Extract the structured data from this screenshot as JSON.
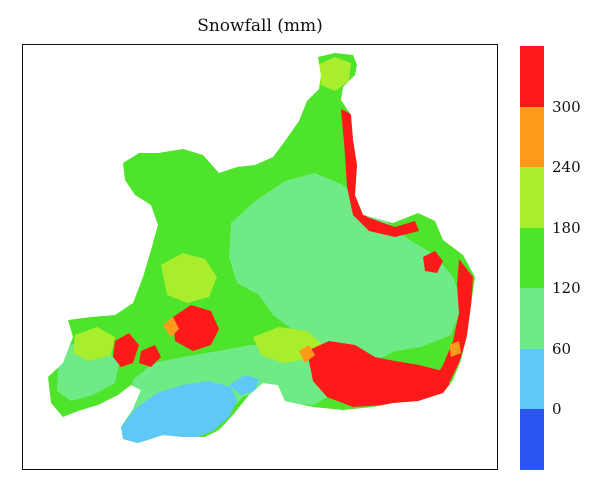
{
  "title": "Snowfall (mm)",
  "colorbar": {
    "segments_top_to_bottom": [
      {
        "color": "#ff1a1a",
        "range": "> 300"
      },
      {
        "color": "#ff9a1a",
        "range": "240–300"
      },
      {
        "color": "#a8ee2c",
        "range": "180–240"
      },
      {
        "color": "#4ee42c",
        "range": "120–180"
      },
      {
        "color": "#6eeb86",
        "range": "60–120"
      },
      {
        "color": "#5ec8f6",
        "range": "0–60"
      },
      {
        "color": "#2a55f0",
        "range": "< 0"
      }
    ],
    "tick_labels_top_to_bottom": [
      "300",
      "240",
      "180",
      "120",
      "60",
      "0"
    ]
  }
}
